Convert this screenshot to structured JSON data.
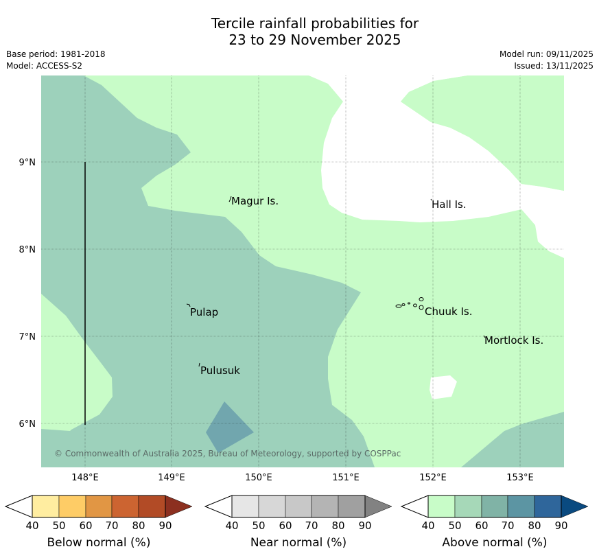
{
  "header": {
    "title_line1": "Tercile rainfall probabilities for",
    "title_line2": "23 to 29 November 2025",
    "base_period": "Base period: 1981-2018",
    "model": "Model: ACCESS-S2",
    "model_run": "Model run: 09/11/2025",
    "issued": "Issued: 13/11/2025"
  },
  "map": {
    "lat_labels": [
      "9°N",
      "8°N",
      "7°N",
      "6°N"
    ],
    "lon_labels": [
      "148°E",
      "149°E",
      "150°E",
      "151°E",
      "152°E",
      "153°E"
    ],
    "places": [
      "Magur Is.",
      "Hall Is.",
      "Pulap",
      "Chuuk Is.",
      "Mortlock Is.",
      "Pulusuk"
    ],
    "copyright": "© Commonwealth of Australia 2025, Bureau of Meteorology, supported by COSPPac",
    "colors": {
      "above_40": "#c8fcc8",
      "above_50": "#9dd1bb",
      "above_60": "#71a6ae"
    }
  },
  "legend": {
    "tick_labels": [
      "40",
      "50",
      "60",
      "70",
      "80",
      "90"
    ],
    "below": {
      "label": "Below normal (%)",
      "colors": [
        "#ffeda0",
        "#fecc66",
        "#e19644",
        "#cc6431",
        "#b24b26",
        "#8c3020"
      ]
    },
    "near": {
      "label": "Near normal (%)",
      "colors": [
        "#e6e6e6",
        "#d7d7d7",
        "#c8c8c8",
        "#b4b4b4",
        "#a0a0a0",
        "#828282"
      ]
    },
    "above": {
      "label": "Above normal (%)",
      "colors": [
        "#c8fcc8",
        "#a6d8b8",
        "#80b3a6",
        "#5c95a3",
        "#2f669b",
        "#0a4a80"
      ]
    }
  }
}
